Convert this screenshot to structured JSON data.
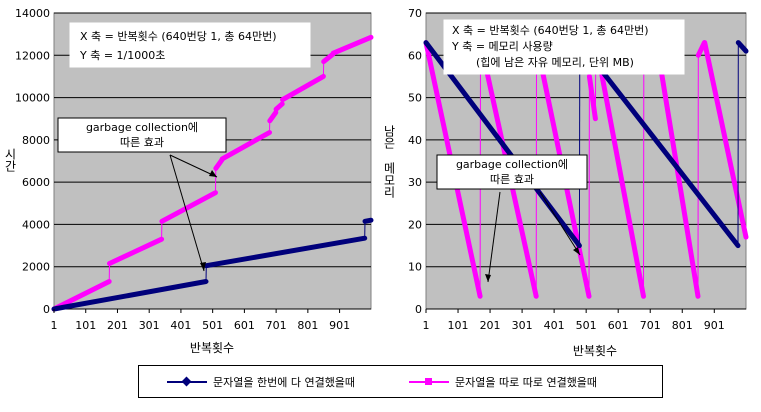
{
  "colors": {
    "plot_bg": "#c0c0c0",
    "series1": "#00007b",
    "series2": "#ff00ff"
  },
  "chart_data": [
    {
      "type": "line",
      "title": "",
      "xlabel": "반복횟수",
      "ylabel": "시간",
      "xlim": [
        1,
        1000
      ],
      "ylim": [
        0,
        14000
      ],
      "x_ticks": [
        "1",
        "101",
        "201",
        "301",
        "401",
        "501",
        "601",
        "701",
        "801",
        "901"
      ],
      "y_ticks": [
        "0",
        "2000",
        "4000",
        "6000",
        "8000",
        "10000",
        "12000",
        "14000"
      ],
      "grid": "horizontal",
      "info_box": [
        "X 축 = 반복횟수 (640번당 1, 총 64만번)",
        "Y 축 = 1/1000초"
      ],
      "annotation": [
        "garbage collection에",
        "따른 효과"
      ],
      "series": [
        {
          "name": "문자열을 한번에 다 연결했을때",
          "color": "#00007b",
          "marker": "diamond",
          "x": [
            1,
            480,
            481,
            980,
            981,
            1000
          ],
          "y": [
            0,
            1300,
            2050,
            3350,
            4150,
            4200
          ]
        },
        {
          "name": "문자열을 따로 따로 연결했을때",
          "color": "#ff00ff",
          "marker": "square",
          "x": [
            1,
            175,
            176,
            340,
            341,
            510,
            511,
            530,
            531,
            680,
            681,
            700,
            701,
            720,
            721,
            850,
            851,
            880,
            881,
            1000
          ],
          "y": [
            0,
            1300,
            2150,
            3300,
            4150,
            5500,
            6650,
            7050,
            7100,
            8350,
            8900,
            9300,
            9450,
            9700,
            9900,
            11000,
            11700,
            12050,
            12100,
            12850
          ]
        }
      ]
    },
    {
      "type": "line",
      "title": "",
      "xlabel": "반복횟수",
      "ylabel": "남은 메모리",
      "xlim": [
        1,
        1000
      ],
      "ylim": [
        0,
        70
      ],
      "x_ticks": [
        "1",
        "101",
        "201",
        "301",
        "401",
        "501",
        "601",
        "701",
        "801",
        "901"
      ],
      "y_ticks": [
        "0",
        "10",
        "20",
        "30",
        "40",
        "50",
        "60",
        "70"
      ],
      "grid": "horizontal",
      "info_box": [
        "X 축 = 반복횟수 (640번당 1, 총 64만번)",
        "Y 축 = 메모리 사용량",
        "(힙에 남은 자유 메모리, 단위 MB)"
      ],
      "annotation": [
        "garbage collection에",
        "따른 효과"
      ],
      "series": [
        {
          "name": "문자열을 한번에 다 연결했을때",
          "color": "#00007b",
          "marker": "diamond",
          "x": [
            1,
            480,
            481,
            975,
            976,
            1000
          ],
          "y": [
            63,
            15,
            63,
            15,
            63,
            61
          ]
        },
        {
          "name": "문자열을 따로 따로 연결했을때",
          "color": "#ff00ff",
          "marker": "square",
          "x": [
            1,
            170,
            171,
            345,
            346,
            510,
            511,
            530,
            531,
            680,
            681,
            700,
            701,
            720,
            721,
            850,
            851,
            870,
            871,
            1000
          ],
          "y": [
            63,
            3,
            63,
            3,
            63,
            3,
            55,
            45,
            63,
            3,
            57,
            63,
            63,
            63,
            63,
            3,
            60,
            63,
            63,
            17
          ]
        }
      ]
    }
  ]
}
